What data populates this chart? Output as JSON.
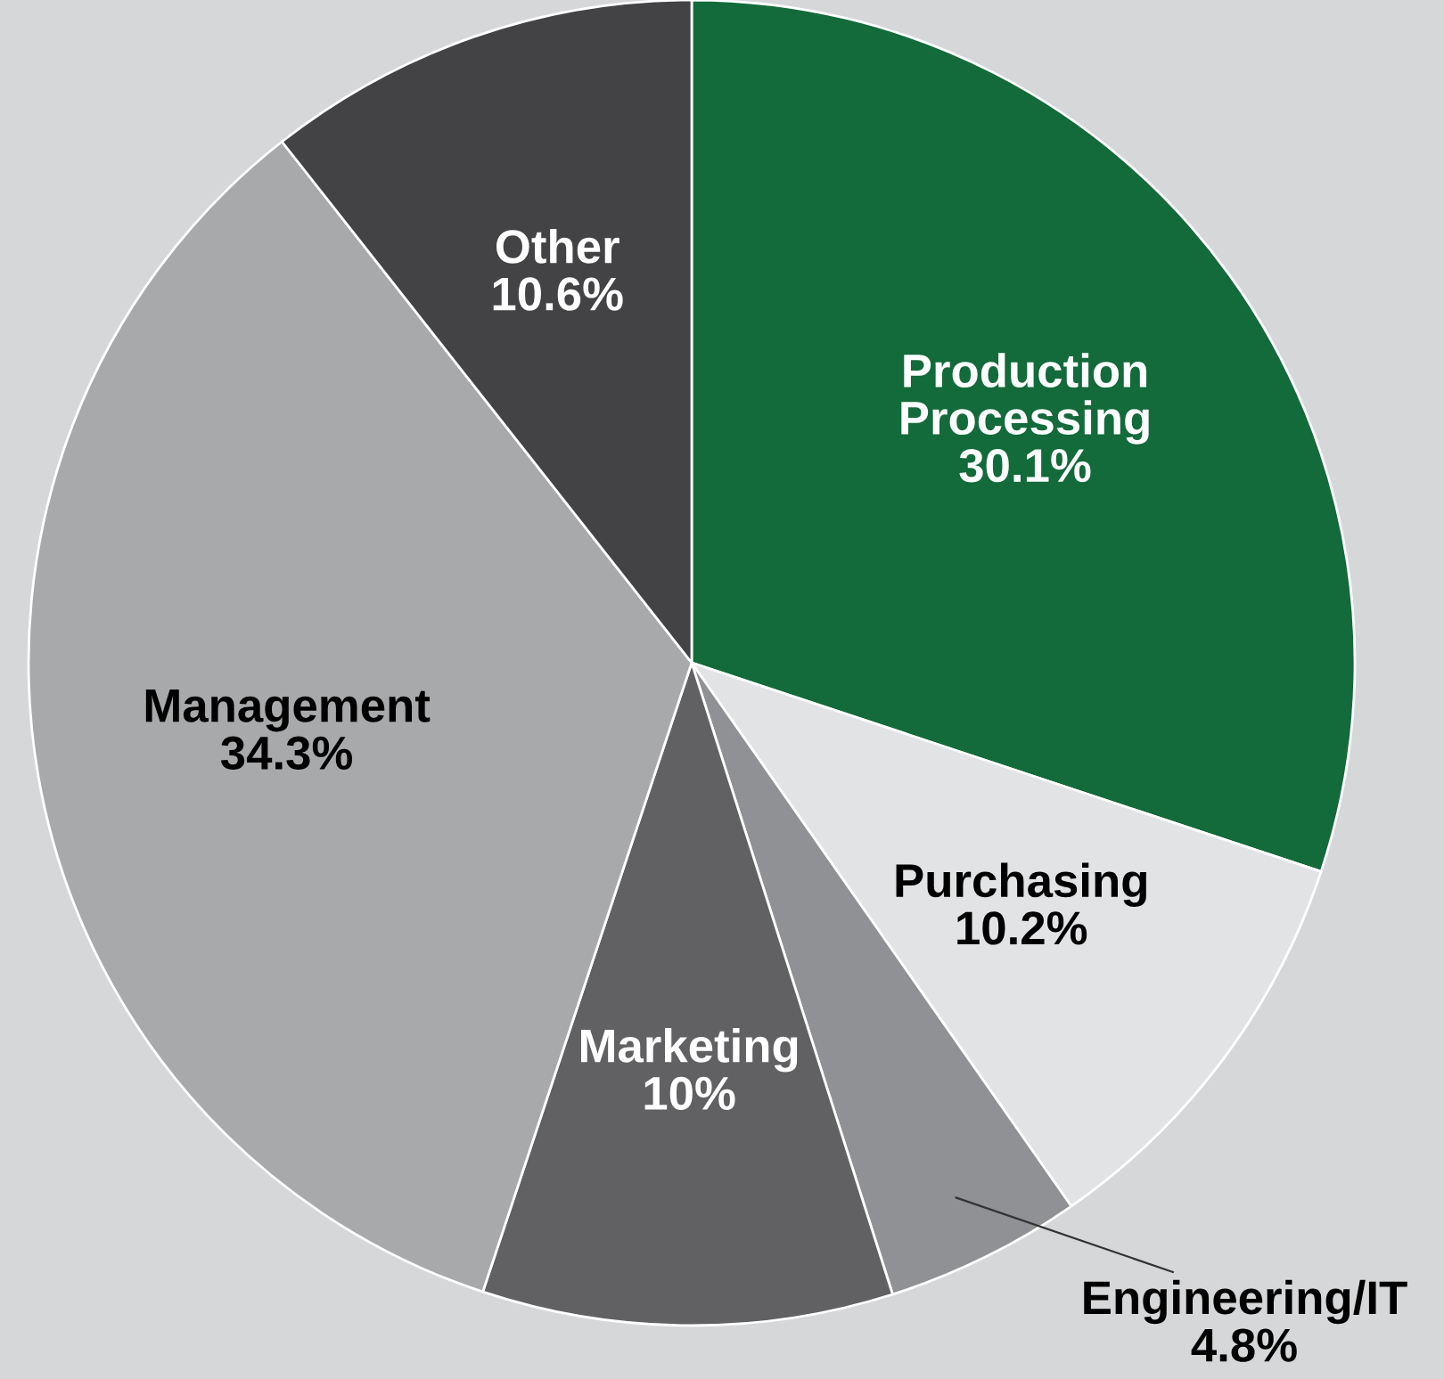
{
  "chart_data": {
    "type": "pie",
    "categories": [
      "Production\nProcessing",
      "Purchasing",
      "Engineering/IT",
      "Marketing",
      "Management",
      "Other"
    ],
    "values": [
      30.1,
      10.2,
      4.8,
      10,
      34.3,
      10.6
    ],
    "value_labels": [
      "30.1%",
      "10.2%",
      "4.8%",
      "10%",
      "34.3%",
      "10.6%"
    ],
    "colors": [
      "#136a3a",
      "#e2e3e5",
      "#909194",
      "#616163",
      "#a8a9ab",
      "#434345"
    ]
  }
}
